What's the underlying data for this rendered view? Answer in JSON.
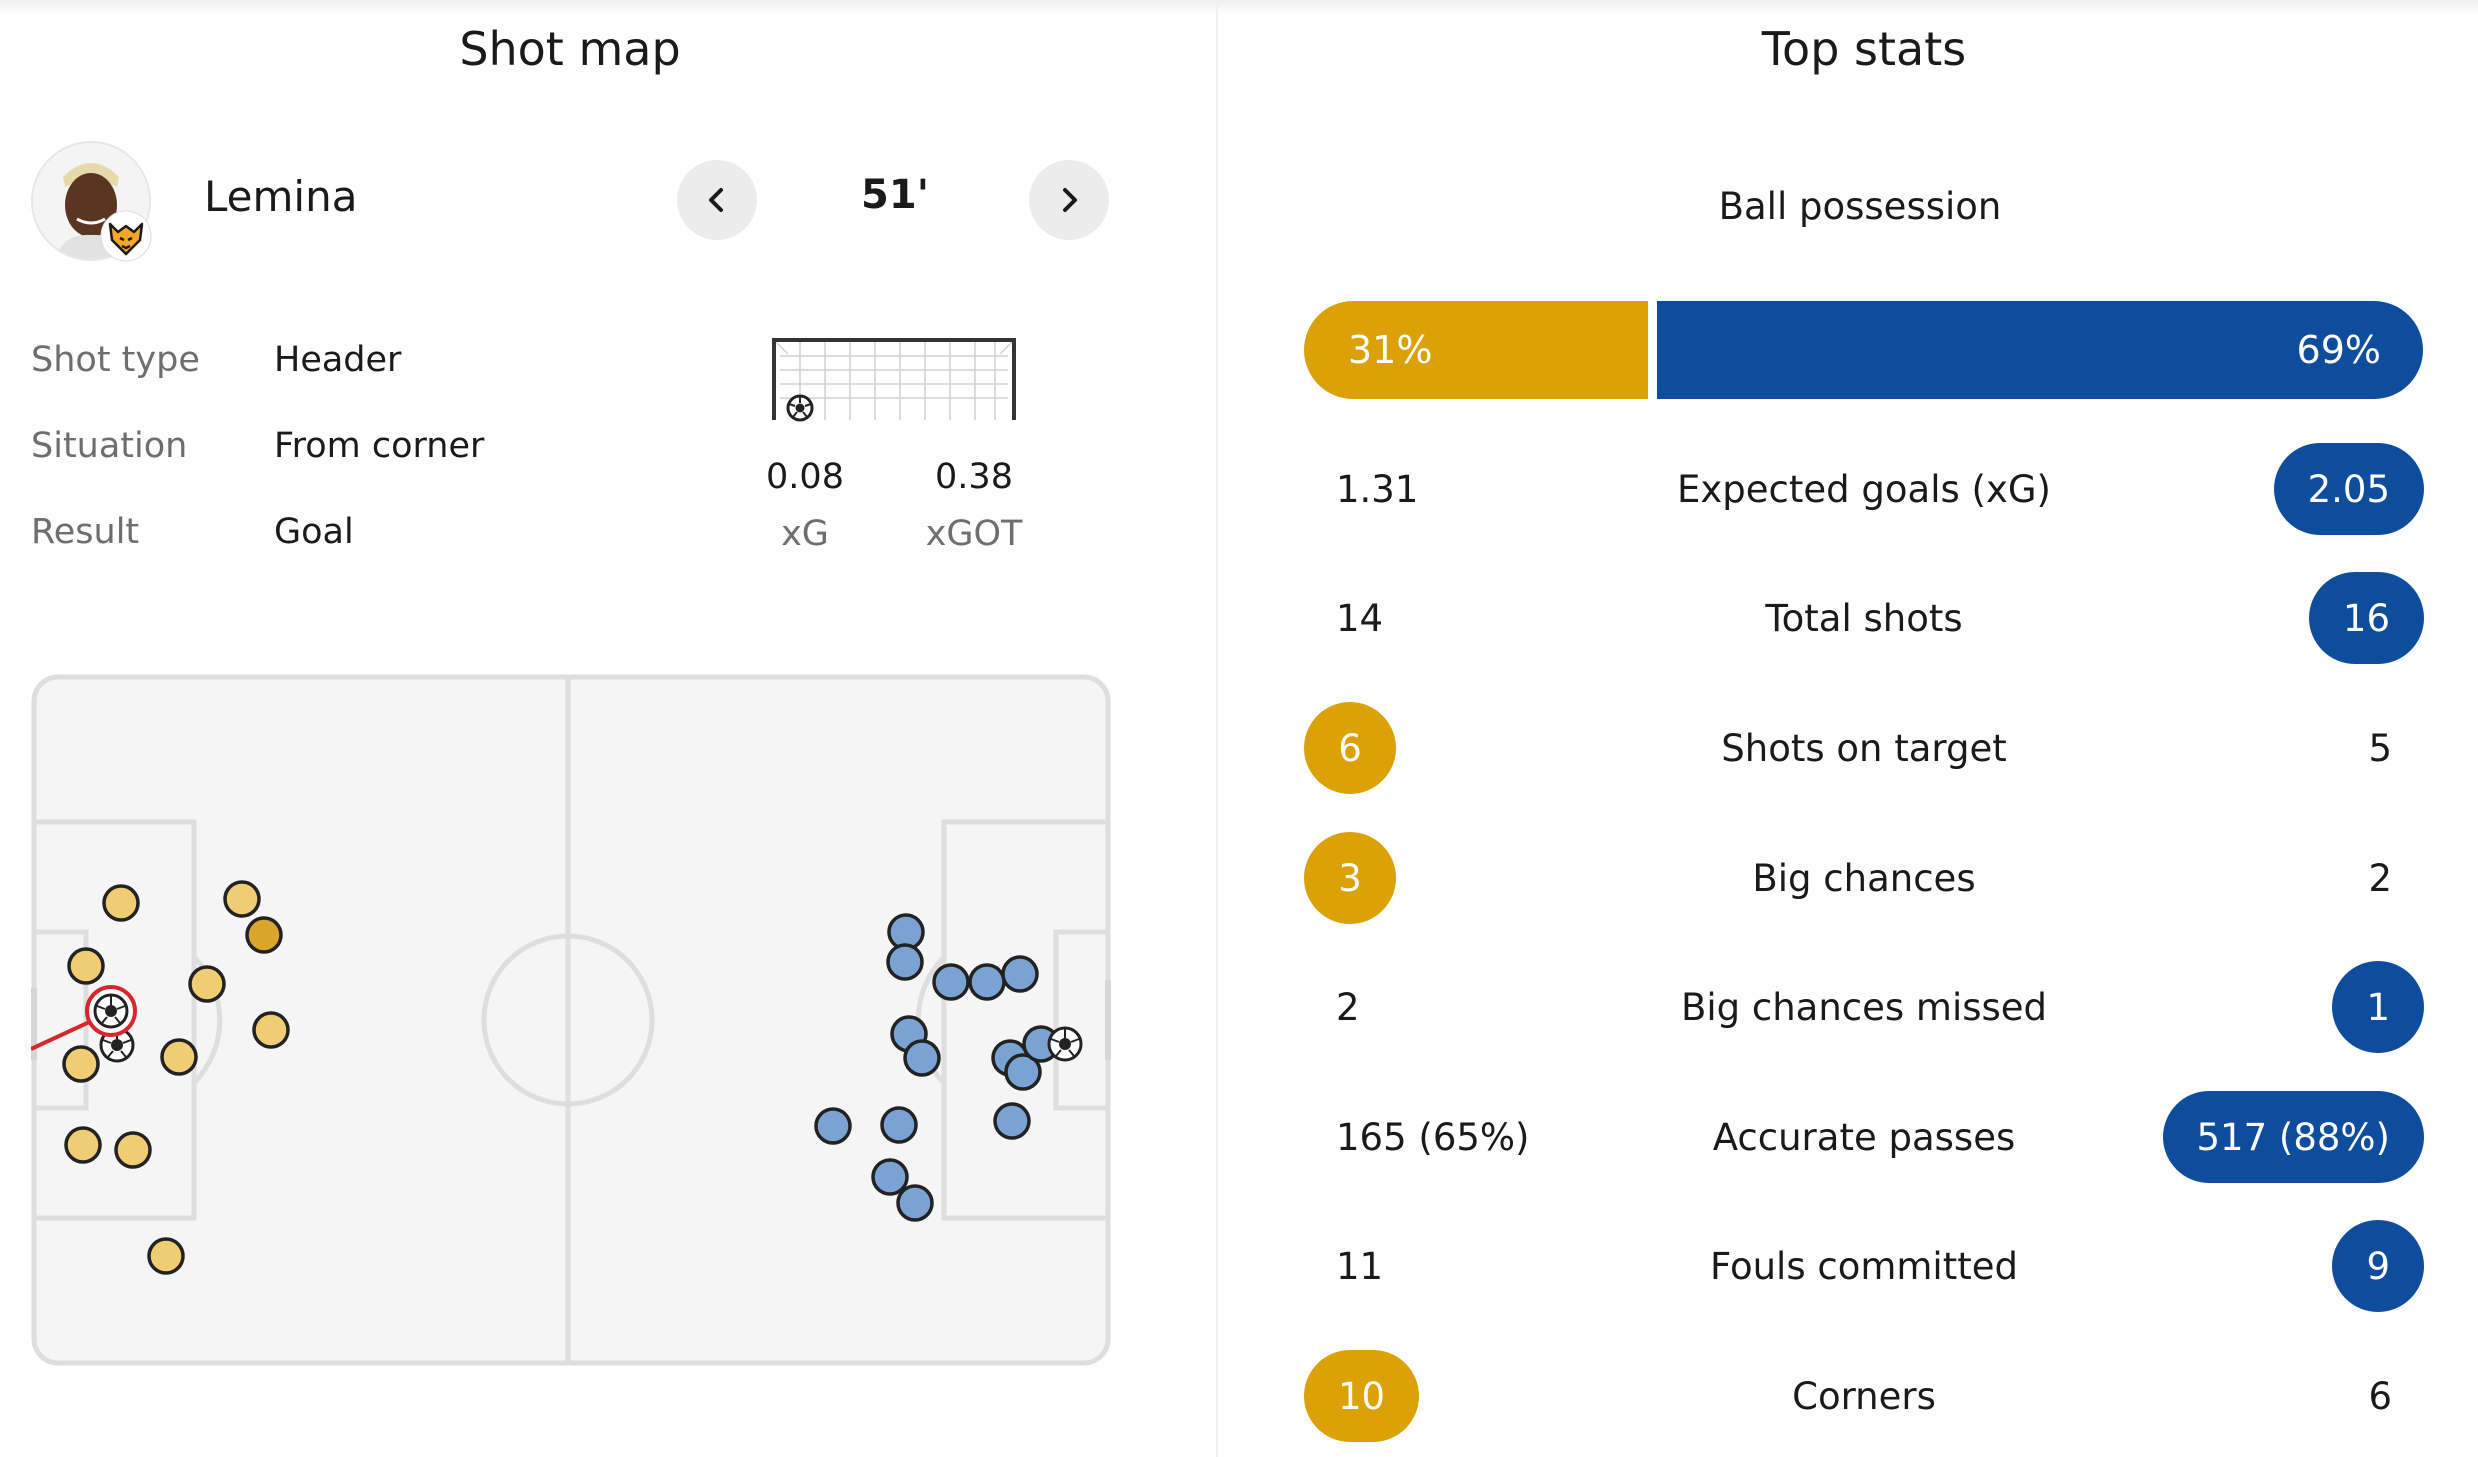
{
  "shot_map": {
    "title": "Shot map",
    "player": {
      "name": "Lemina",
      "team_badge": "wolves-badge-icon"
    },
    "minute": "51'",
    "details": [
      {
        "label": "Shot type",
        "value": "Header"
      },
      {
        "label": "Situation",
        "value": "From corner"
      },
      {
        "label": "Result",
        "value": "Goal"
      }
    ],
    "xg": {
      "value": "0.08",
      "label": "xG"
    },
    "xgot": {
      "value": "0.38",
      "label": "xGOT"
    },
    "icons": {
      "prev": "chevron-left-icon",
      "next": "chevron-right-icon",
      "ball": "football-icon"
    }
  },
  "top_stats": {
    "title": "Top stats",
    "possession": {
      "label": "Ball possession",
      "home": "31%",
      "away": "69%",
      "home_fraction": 0.31
    },
    "rows": [
      {
        "label": "Expected goals (xG)",
        "home": "1.31",
        "away": "2.05",
        "highlight": "away"
      },
      {
        "label": "Total shots",
        "home": "14",
        "away": "16",
        "highlight": "away"
      },
      {
        "label": "Shots on target",
        "home": "6",
        "away": "5",
        "highlight": "home"
      },
      {
        "label": "Big chances",
        "home": "3",
        "away": "2",
        "highlight": "home"
      },
      {
        "label": "Big chances missed",
        "home": "2",
        "away": "1",
        "highlight": "away"
      },
      {
        "label": "Accurate passes",
        "home": "165 (65%)",
        "away": "517 (88%)",
        "highlight": "away"
      },
      {
        "label": "Fouls committed",
        "home": "11",
        "away": "9",
        "highlight": "away"
      },
      {
        "label": "Corners",
        "home": "10",
        "away": "6",
        "highlight": "home"
      }
    ]
  },
  "colors": {
    "home": "#dba106",
    "away": "#0e4d9e",
    "home_shot": "#f0cd73",
    "away_shot": "#7aa3d3",
    "selected_ring": "#d9262d"
  }
}
